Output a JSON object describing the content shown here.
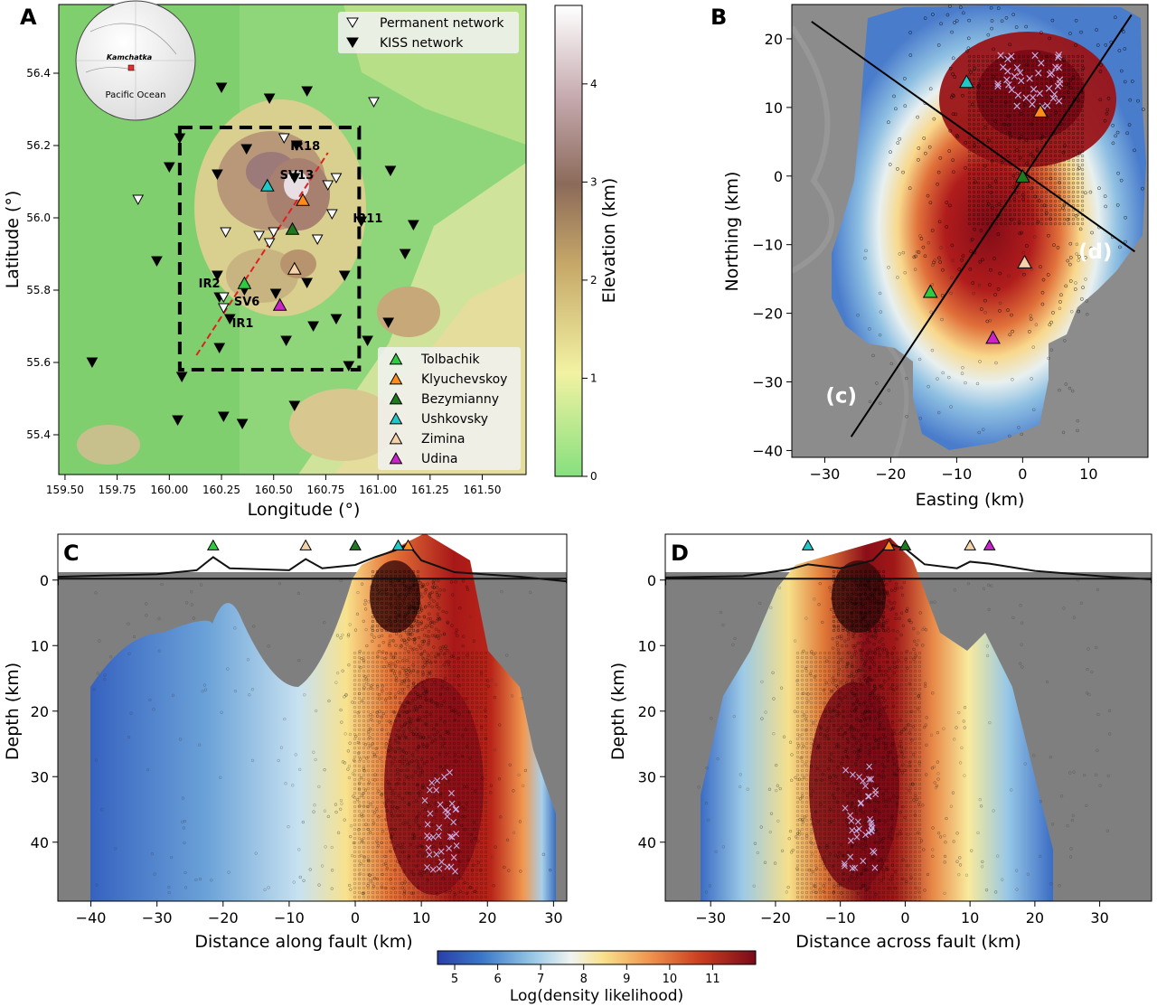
{
  "colors": {
    "gray": "#7f7f7f",
    "tolbachik": "#2ecc40",
    "klyuchevskoy": "#ff8c1a",
    "bezymianny": "#1f7a1f",
    "ushkovsky": "#1fc8c8",
    "zimina": "#f5d2a8",
    "udina": "#cc22cc"
  },
  "chart_data": [
    {
      "panel": "A",
      "type": "scatter",
      "title": "",
      "xlabel": "Longitude (°)",
      "ylabel": "Latitude (°)",
      "xlim": [
        159.47,
        161.71
      ],
      "ylim": [
        55.29,
        56.59
      ],
      "xticks": [
        "159.50",
        "159.75",
        "160.00",
        "160.25",
        "160.50",
        "160.75",
        "161.00",
        "161.25",
        "161.50"
      ],
      "xtick_values": [
        159.5,
        159.75,
        160.0,
        160.25,
        160.5,
        160.75,
        161.0,
        161.25,
        161.5
      ],
      "yticks": [
        "55.4",
        "55.6",
        "55.8",
        "56.0",
        "56.2",
        "56.4"
      ],
      "ytick_values": [
        55.4,
        55.6,
        55.8,
        56.0,
        56.2,
        56.4
      ],
      "inset": {
        "place": "Kamchatka",
        "ocean": "Pacific Ocean"
      },
      "legend_top": [
        {
          "label": "Permanent network",
          "marker": "open-down-triangle"
        },
        {
          "label": "KISS network",
          "marker": "filled-down-triangle"
        }
      ],
      "legend_volcanoes": [
        {
          "label": "Tolbachik",
          "color": "#2ecc40"
        },
        {
          "label": "Klyuchevskoy",
          "color": "#ff8c1a"
        },
        {
          "label": "Bezymianny",
          "color": "#1f7a1f"
        },
        {
          "label": "Ushkovsky",
          "color": "#1fc8c8"
        },
        {
          "label": "Zimina",
          "color": "#f5d2a8"
        },
        {
          "label": "Udina",
          "color": "#cc22cc"
        }
      ],
      "volcanoes": [
        {
          "name": "Ushkovsky",
          "lon": 160.47,
          "lat": 56.09
        },
        {
          "name": "Klyuchevskoy",
          "lon": 160.64,
          "lat": 56.05
        },
        {
          "name": "Bezymianny",
          "lon": 160.59,
          "lat": 55.97
        },
        {
          "name": "Zimina",
          "lon": 160.6,
          "lat": 55.86
        },
        {
          "name": "Tolbachik",
          "lon": 160.36,
          "lat": 55.82
        },
        {
          "name": "Udina",
          "lon": 160.53,
          "lat": 55.76
        }
      ],
      "permanent_stations": [
        [
          159.85,
          56.05
        ],
        [
          160.5,
          55.96
        ],
        [
          160.43,
          55.95
        ],
        [
          160.27,
          55.96
        ],
        [
          160.48,
          55.93
        ],
        [
          160.71,
          55.94
        ],
        [
          160.78,
          56.01
        ],
        [
          160.8,
          56.11
        ],
        [
          160.76,
          56.09
        ],
        [
          160.55,
          56.22
        ],
        [
          160.26,
          55.78
        ],
        [
          160.26,
          55.75
        ],
        [
          160.98,
          56.32
        ]
      ],
      "kiss_stations": [
        [
          160.05,
          56.22
        ],
        [
          160.37,
          56.19
        ],
        [
          160.23,
          56.12
        ],
        [
          160.0,
          56.14
        ],
        [
          159.94,
          55.88
        ],
        [
          159.63,
          55.6
        ],
        [
          160.25,
          56.36
        ],
        [
          160.48,
          56.33
        ],
        [
          160.66,
          56.35
        ],
        [
          161.06,
          56.13
        ],
        [
          161.17,
          55.98
        ],
        [
          160.92,
          55.99
        ],
        [
          160.84,
          55.84
        ],
        [
          160.66,
          55.82
        ],
        [
          160.51,
          55.79
        ],
        [
          160.23,
          55.84
        ],
        [
          160.24,
          55.78
        ],
        [
          160.36,
          55.8
        ],
        [
          160.29,
          55.72
        ],
        [
          160.24,
          55.64
        ],
        [
          160.56,
          55.66
        ],
        [
          160.69,
          55.7
        ],
        [
          160.8,
          55.72
        ],
        [
          161.05,
          55.71
        ],
        [
          161.13,
          55.9
        ],
        [
          160.95,
          55.66
        ],
        [
          160.86,
          55.59
        ],
        [
          160.06,
          55.56
        ],
        [
          160.04,
          55.44
        ],
        [
          160.26,
          55.45
        ],
        [
          160.35,
          55.43
        ],
        [
          160.6,
          55.48
        ],
        [
          160.6,
          56.11
        ],
        [
          160.61,
          56.2
        ]
      ],
      "station_labels": [
        {
          "text": "IR18",
          "lon": 160.58,
          "lat": 56.2
        },
        {
          "text": "SV13",
          "lon": 160.53,
          "lat": 56.12
        },
        {
          "text": "IR11",
          "lon": 160.88,
          "lat": 56.0
        },
        {
          "text": "IR2",
          "lon": 160.14,
          "lat": 55.82
        },
        {
          "text": "SV6",
          "lon": 160.31,
          "lat": 55.77
        },
        {
          "text": "IR1",
          "lon": 160.3,
          "lat": 55.71
        }
      ],
      "study_box": {
        "lon": [
          160.05,
          160.91
        ],
        "lat": [
          55.58,
          56.25
        ]
      },
      "fault_line": {
        "lon": [
          160.13,
          160.76
        ],
        "lat": [
          55.62,
          56.18
        ]
      },
      "colorbar": {
        "label": "Elevation (km)",
        "ticks": [
          "0",
          "1",
          "2",
          "3",
          "4"
        ],
        "range": [
          0,
          4.8
        ]
      }
    },
    {
      "panel": "B",
      "type": "heatmap",
      "xlabel": "Easting (km)",
      "ylabel": "Northing (km)",
      "xlim": [
        -35,
        19
      ],
      "ylim": [
        -41,
        25
      ],
      "xticks": [
        "−30",
        "−20",
        "−10",
        "0",
        "10"
      ],
      "xtick_values": [
        -30,
        -20,
        -10,
        0,
        10
      ],
      "yticks": [
        "−40",
        "−30",
        "−20",
        "−10",
        "0",
        "10",
        "20"
      ],
      "ytick_values": [
        -40,
        -30,
        -20,
        -10,
        0,
        10,
        20
      ],
      "profile_labels": [
        {
          "text": "(c)",
          "x": -27.5,
          "y": -33
        },
        {
          "text": "(d)",
          "x": 11,
          "y": -12
        }
      ],
      "profiles": [
        {
          "x": [
            -32,
            17
          ],
          "y": [
            22.5,
            -11
          ]
        },
        {
          "x": [
            -26,
            16.5
          ],
          "y": [
            -38,
            23.5
          ]
        }
      ],
      "volcanoes": [
        {
          "name": "Ushkovsky",
          "x": -8.5,
          "y": 13.8
        },
        {
          "name": "Klyuchevskoy",
          "x": 2.7,
          "y": 9.5
        },
        {
          "name": "Bezymianny",
          "x": 0,
          "y": 0
        },
        {
          "name": "Zimina",
          "x": 0.3,
          "y": -12.5
        },
        {
          "name": "Tolbachik",
          "x": -14,
          "y": -16.8
        },
        {
          "name": "Udina",
          "x": -4.5,
          "y": -23.5
        }
      ]
    },
    {
      "panel": "C",
      "type": "heatmap",
      "xlabel": "Distance along fault (km)",
      "ylabel": "Depth (km)",
      "xlim": [
        -45,
        32
      ],
      "ylim": [
        49,
        -7
      ],
      "xticks": [
        "−40",
        "−30",
        "−20",
        "−10",
        "0",
        "10",
        "20",
        "30"
      ],
      "xtick_values": [
        -40,
        -30,
        -20,
        -10,
        0,
        10,
        20,
        30
      ],
      "yticks": [
        "0",
        "10",
        "20",
        "30",
        "40"
      ],
      "ytick_values": [
        0,
        10,
        20,
        30,
        40
      ],
      "volcanoes": [
        {
          "name": "Tolbachik",
          "x": -21.5
        },
        {
          "name": "Zimina",
          "x": -7.5
        },
        {
          "name": "Bezymianny",
          "x": 0
        },
        {
          "name": "Ushkovsky",
          "x": 6.5
        },
        {
          "name": "Klyuchevskoy",
          "x": 8
        }
      ],
      "peak_center": 9,
      "crosses_center": [
        13,
        37
      ]
    },
    {
      "panel": "D",
      "type": "heatmap",
      "xlabel": "Distance across fault (km)",
      "ylabel": "Depth (km)",
      "xlim": [
        -37,
        38
      ],
      "ylim": [
        49,
        -7
      ],
      "xticks": [
        "−30",
        "−20",
        "−10",
        "0",
        "10",
        "20",
        "30"
      ],
      "xtick_values": [
        -30,
        -20,
        -10,
        0,
        10,
        20,
        30
      ],
      "yticks": [
        "0",
        "10",
        "20",
        "30",
        "40"
      ],
      "ytick_values": [
        0,
        10,
        20,
        30,
        40
      ],
      "volcanoes": [
        {
          "name": "Ushkovsky",
          "x": -15
        },
        {
          "name": "Klyuchevskoy",
          "x": -2.5
        },
        {
          "name": "Bezymianny",
          "x": 0
        },
        {
          "name": "Zimina",
          "x": 10
        },
        {
          "name": "Udina",
          "x": 13
        }
      ],
      "peak_center": -6,
      "crosses_center": [
        -7,
        36
      ]
    }
  ],
  "colorbar_bottom": {
    "label": "Log(density likelihood)",
    "ticks": [
      "5",
      "6",
      "7",
      "8",
      "9",
      "10",
      "11"
    ],
    "range": [
      4.6,
      12
    ]
  },
  "panel_letters": [
    "A",
    "B",
    "C",
    "D"
  ]
}
